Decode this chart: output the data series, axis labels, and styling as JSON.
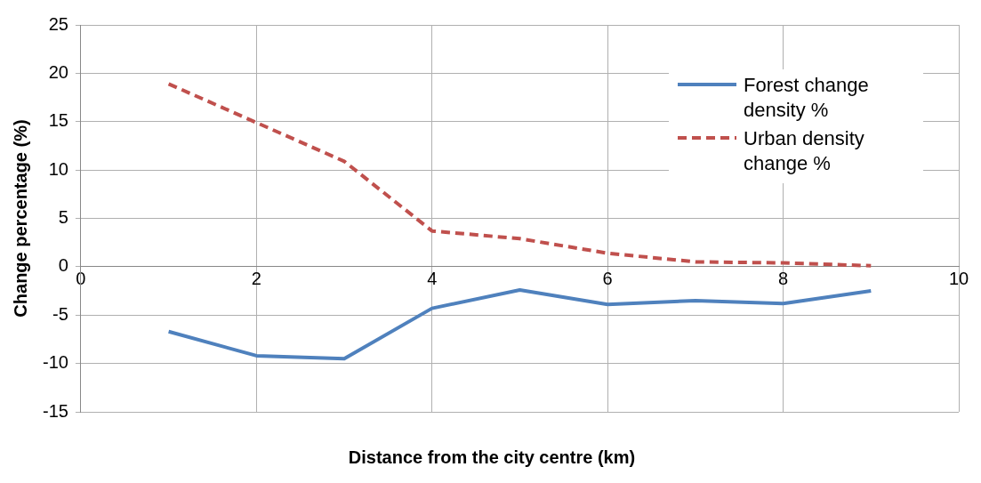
{
  "chart_data": {
    "type": "line",
    "xlabel": "Distance from the city centre (km)",
    "ylabel": "Change percentage (%)",
    "x": [
      1,
      2,
      3,
      4,
      5,
      6,
      7,
      8,
      9
    ],
    "series": [
      {
        "name": "Forest change density %",
        "color": "#4f81bd",
        "line_style": "solid",
        "values": [
          -6.7,
          -9.2,
          -9.5,
          -4.3,
          -2.4,
          -3.9,
          -3.5,
          -3.8,
          -2.5
        ]
      },
      {
        "name": "Urban density change %",
        "color": "#c0504d",
        "line_style": "dashed",
        "values": [
          18.9,
          14.9,
          10.9,
          3.7,
          2.9,
          1.4,
          0.5,
          0.4,
          0.1
        ]
      }
    ],
    "xlim": [
      0,
      10
    ],
    "xticks": [
      0,
      2,
      4,
      6,
      8,
      10
    ],
    "ylim": [
      -15,
      25
    ],
    "yticks": [
      -15,
      -10,
      -5,
      0,
      5,
      10,
      15,
      20,
      25
    ],
    "grid": true,
    "legend": "top right",
    "marker": "none"
  }
}
